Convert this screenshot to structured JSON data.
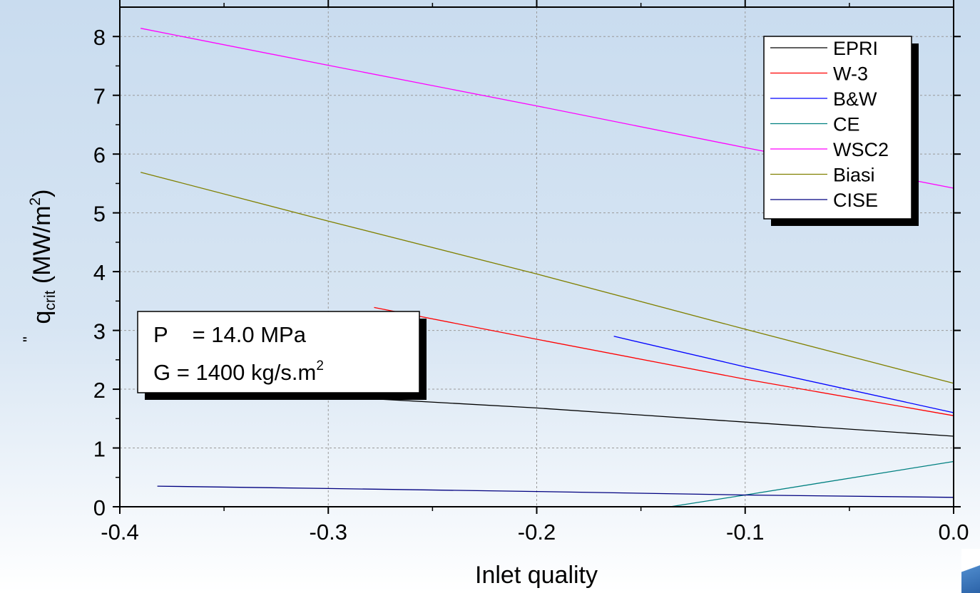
{
  "chart_data": {
    "type": "line",
    "xlabel": "Inlet quality",
    "ylabel": {
      "main": "q",
      "prime": "\"",
      "subscript": "crit",
      "unit_open": " (MW/m",
      "unit_sup": "2",
      "unit_close": ")"
    },
    "xlim": [
      -0.4,
      0.0
    ],
    "ylim": [
      0,
      8.5
    ],
    "x_ticks": [
      {
        "value": -0.4,
        "label": "-0.4"
      },
      {
        "value": -0.3,
        "label": "-0.3"
      },
      {
        "value": -0.2,
        "label": "-0.2"
      },
      {
        "value": -0.1,
        "label": "-0.1"
      },
      {
        "value": 0.0,
        "label": "0.0"
      }
    ],
    "y_ticks": [
      {
        "value": 0,
        "label": "0"
      },
      {
        "value": 1,
        "label": "1"
      },
      {
        "value": 2,
        "label": "2"
      },
      {
        "value": 3,
        "label": "3"
      },
      {
        "value": 4,
        "label": "4"
      },
      {
        "value": 5,
        "label": "5"
      },
      {
        "value": 6,
        "label": "6"
      },
      {
        "value": 7,
        "label": "7"
      },
      {
        "value": 8,
        "label": "8"
      }
    ],
    "grid": true,
    "legend_position": "top-right",
    "annotation": {
      "line1": "P    = 14.0 MPa",
      "line2": "G = 1400 kg/s.m",
      "line2_sup": "2"
    },
    "series": [
      {
        "name": "EPRI",
        "color": "#000000",
        "points": [
          [
            -0.39,
            2.2
          ],
          [
            -0.3,
            1.88
          ],
          [
            -0.2,
            1.68
          ],
          [
            -0.1,
            1.44
          ],
          [
            0.0,
            1.2
          ]
        ]
      },
      {
        "name": "W-3",
        "color": "#ff0000",
        "points": [
          [
            -0.278,
            3.39
          ],
          [
            -0.2,
            2.85
          ],
          [
            -0.1,
            2.17
          ],
          [
            0.0,
            1.55
          ]
        ]
      },
      {
        "name": "B&W",
        "color": "#0000ff",
        "points": [
          [
            -0.163,
            2.9
          ],
          [
            -0.1,
            2.38
          ],
          [
            0.0,
            1.6
          ]
        ]
      },
      {
        "name": "CE",
        "color": "#008080",
        "points": [
          [
            -0.136,
            0.0
          ],
          [
            -0.1,
            0.2
          ],
          [
            0.0,
            0.77
          ]
        ]
      },
      {
        "name": "WSC2",
        "color": "#ff00ff",
        "points": [
          [
            -0.39,
            8.14
          ],
          [
            -0.3,
            7.51
          ],
          [
            -0.2,
            6.82
          ],
          [
            -0.1,
            6.11
          ],
          [
            0.0,
            5.42
          ]
        ]
      },
      {
        "name": "Biasi",
        "color": "#808000",
        "points": [
          [
            -0.39,
            5.69
          ],
          [
            -0.3,
            4.86
          ],
          [
            -0.2,
            3.96
          ],
          [
            -0.1,
            3.02
          ],
          [
            0.0,
            2.1
          ]
        ]
      },
      {
        "name": "CISE",
        "color": "#000080",
        "points": [
          [
            -0.382,
            0.35
          ],
          [
            -0.3,
            0.31
          ],
          [
            -0.2,
            0.26
          ],
          [
            -0.1,
            0.2
          ],
          [
            0.0,
            0.16
          ]
        ]
      }
    ]
  }
}
